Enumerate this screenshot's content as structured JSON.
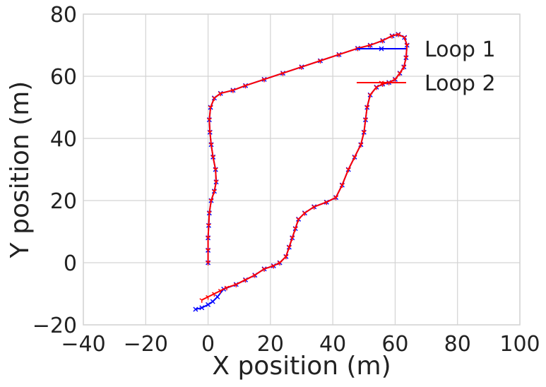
{
  "chart_data": {
    "type": "line",
    "xlabel": "X position (m)",
    "ylabel": "Y position (m)",
    "xlim": [
      -40,
      100
    ],
    "ylim": [
      -20,
      80
    ],
    "xticks": [
      -40,
      -20,
      0,
      20,
      40,
      60,
      80,
      100
    ],
    "yticks": [
      -20,
      0,
      20,
      40,
      60,
      80
    ],
    "grid": true,
    "legend_position": "top-right",
    "series": [
      {
        "name": "Loop 1",
        "color": "#0000ff",
        "marker": "x",
        "points": [
          [
            0,
            0
          ],
          [
            0,
            4
          ],
          [
            0,
            8
          ],
          [
            0.2,
            12
          ],
          [
            0.4,
            16
          ],
          [
            1,
            20
          ],
          [
            2,
            23
          ],
          [
            2.6,
            26
          ],
          [
            2.4,
            30
          ],
          [
            1.6,
            34
          ],
          [
            1,
            38
          ],
          [
            0.6,
            42
          ],
          [
            0.4,
            46
          ],
          [
            0.8,
            50
          ],
          [
            2,
            53
          ],
          [
            4,
            54.5
          ],
          [
            8,
            55.5
          ],
          [
            12,
            57
          ],
          [
            18,
            59
          ],
          [
            24,
            61
          ],
          [
            30,
            63
          ],
          [
            36,
            65
          ],
          [
            42,
            67
          ],
          [
            48,
            69
          ],
          [
            52,
            70
          ],
          [
            56,
            71.5
          ],
          [
            59,
            73
          ],
          [
            61,
            73.5
          ],
          [
            63,
            72.5
          ],
          [
            63.8,
            70
          ],
          [
            63.5,
            66
          ],
          [
            62.8,
            63
          ],
          [
            61.5,
            61
          ],
          [
            60,
            59
          ],
          [
            58,
            58
          ],
          [
            56,
            57.5
          ],
          [
            54,
            56.5
          ],
          [
            52,
            54
          ],
          [
            51,
            50
          ],
          [
            50.5,
            46
          ],
          [
            50,
            42
          ],
          [
            49,
            38
          ],
          [
            47,
            34
          ],
          [
            45,
            30
          ],
          [
            43,
            25
          ],
          [
            41,
            21
          ],
          [
            38,
            19.5
          ],
          [
            34,
            18
          ],
          [
            31,
            16
          ],
          [
            29,
            14
          ],
          [
            28,
            11
          ],
          [
            27,
            8
          ],
          [
            26,
            5
          ],
          [
            25,
            2
          ],
          [
            23,
            0
          ],
          [
            21,
            -1
          ],
          [
            18,
            -2
          ],
          [
            15,
            -4
          ],
          [
            12,
            -5.5
          ],
          [
            9,
            -7
          ],
          [
            5,
            -8.5
          ],
          [
            3,
            -11
          ],
          [
            1.5,
            -12.5
          ],
          [
            0,
            -13.5
          ],
          [
            -2,
            -14.5
          ],
          [
            -4,
            -15
          ]
        ]
      },
      {
        "name": "Loop 2",
        "color": "#ff0000",
        "marker": "1",
        "points": [
          [
            0,
            0
          ],
          [
            0,
            4
          ],
          [
            0,
            8
          ],
          [
            0.2,
            12
          ],
          [
            0.4,
            16
          ],
          [
            1,
            20
          ],
          [
            2,
            23
          ],
          [
            2.6,
            26
          ],
          [
            2.4,
            30
          ],
          [
            1.6,
            34
          ],
          [
            1,
            38
          ],
          [
            0.6,
            42
          ],
          [
            0.4,
            46
          ],
          [
            0.8,
            50
          ],
          [
            2,
            53
          ],
          [
            4,
            54.5
          ],
          [
            8,
            55.5
          ],
          [
            12,
            57
          ],
          [
            18,
            59
          ],
          [
            24,
            61
          ],
          [
            30,
            63
          ],
          [
            36,
            65
          ],
          [
            42,
            67
          ],
          [
            48,
            69
          ],
          [
            52,
            70
          ],
          [
            56,
            71.5
          ],
          [
            59,
            73
          ],
          [
            61,
            73.5
          ],
          [
            63,
            72.5
          ],
          [
            63.8,
            70
          ],
          [
            63.5,
            66
          ],
          [
            62.8,
            63
          ],
          [
            61.5,
            61
          ],
          [
            60,
            59
          ],
          [
            58,
            58
          ],
          [
            56,
            57.5
          ],
          [
            54,
            56.5
          ],
          [
            52,
            54
          ],
          [
            51,
            50
          ],
          [
            50.5,
            46
          ],
          [
            50,
            42
          ],
          [
            49,
            38
          ],
          [
            47,
            34
          ],
          [
            45,
            30
          ],
          [
            43,
            25
          ],
          [
            41,
            21
          ],
          [
            38,
            19.5
          ],
          [
            34,
            18
          ],
          [
            31,
            16
          ],
          [
            29,
            14
          ],
          [
            28,
            11
          ],
          [
            27,
            8
          ],
          [
            26,
            5
          ],
          [
            25,
            2
          ],
          [
            23,
            0
          ],
          [
            21,
            -1
          ],
          [
            18,
            -2
          ],
          [
            15,
            -4
          ],
          [
            12,
            -5.5
          ],
          [
            9,
            -7
          ],
          [
            6,
            -8
          ],
          [
            4,
            -9
          ],
          [
            2,
            -10
          ],
          [
            0,
            -11
          ],
          [
            -2,
            -12
          ]
        ]
      }
    ]
  }
}
